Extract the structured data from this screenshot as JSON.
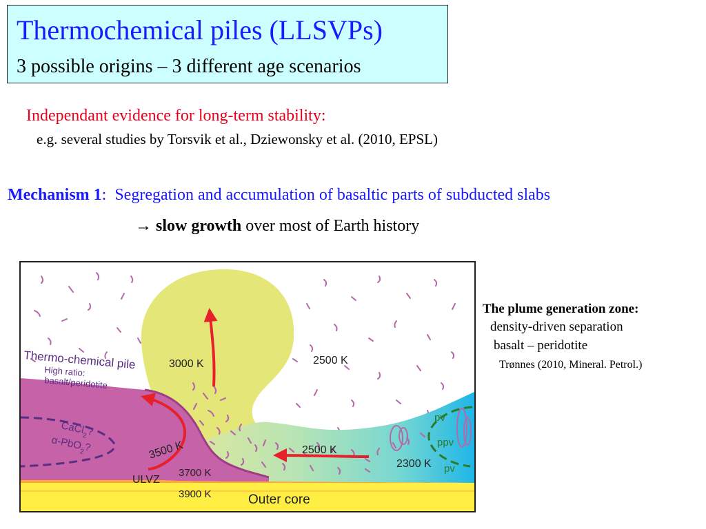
{
  "header": {
    "title": "Thermochemical piles (LLSVPs)",
    "subtitle": "3 possible origins  – 3 different age scenarios"
  },
  "evidence": {
    "heading": "Independant evidence for long-term stability:",
    "detail": "e.g. several studies by Torsvik et al.,  Dziewonsky et al. (2010, EPSL)"
  },
  "mechanism": {
    "label": "Mechanism 1",
    "colon": ":  ",
    "text": "Segregation and accumulation of basaltic parts of subducted slabs",
    "arrow": "→ ",
    "bold": "slow growth",
    "rest": " over most of Earth history"
  },
  "figure": {
    "pile_title": "Thermo-chemical pile",
    "pile_sub1": "High ratio:",
    "pile_sub2": "basalt/peridotite",
    "cacl2": "CaCl",
    "cacl2_sub": "2",
    "cacl2_q": "?",
    "pbo2_prefix": "α-PbO",
    "pbo2_sub": "2",
    "pbo2_q": "?",
    "t_3000": "3000 K",
    "t_2500_upper": "2500 K",
    "t_3500": "3500 K",
    "t_2500_lower": "2500 K",
    "t_2300": "2300 K",
    "t_3700": "3700 K",
    "t_3900": "3900 K",
    "ulvz": "ULVZ",
    "outer_core": "Outer core",
    "pv_top": "pv",
    "ppv": "ppv",
    "pv_bottom": "pv",
    "colors": {
      "pile": "#c562a8",
      "plume": "#e4e678",
      "core": "#ffee44",
      "ulvz": "#ffa53a",
      "arrows": "#e8202a",
      "phase_boundary": "#2d7a2d"
    }
  },
  "side_note": {
    "heading": "The plume generation zone:",
    "line1": "density-driven separation",
    "line2": "basalt – peridotite",
    "reference": "Trønnes (2010, Mineral. Petrol.)"
  }
}
